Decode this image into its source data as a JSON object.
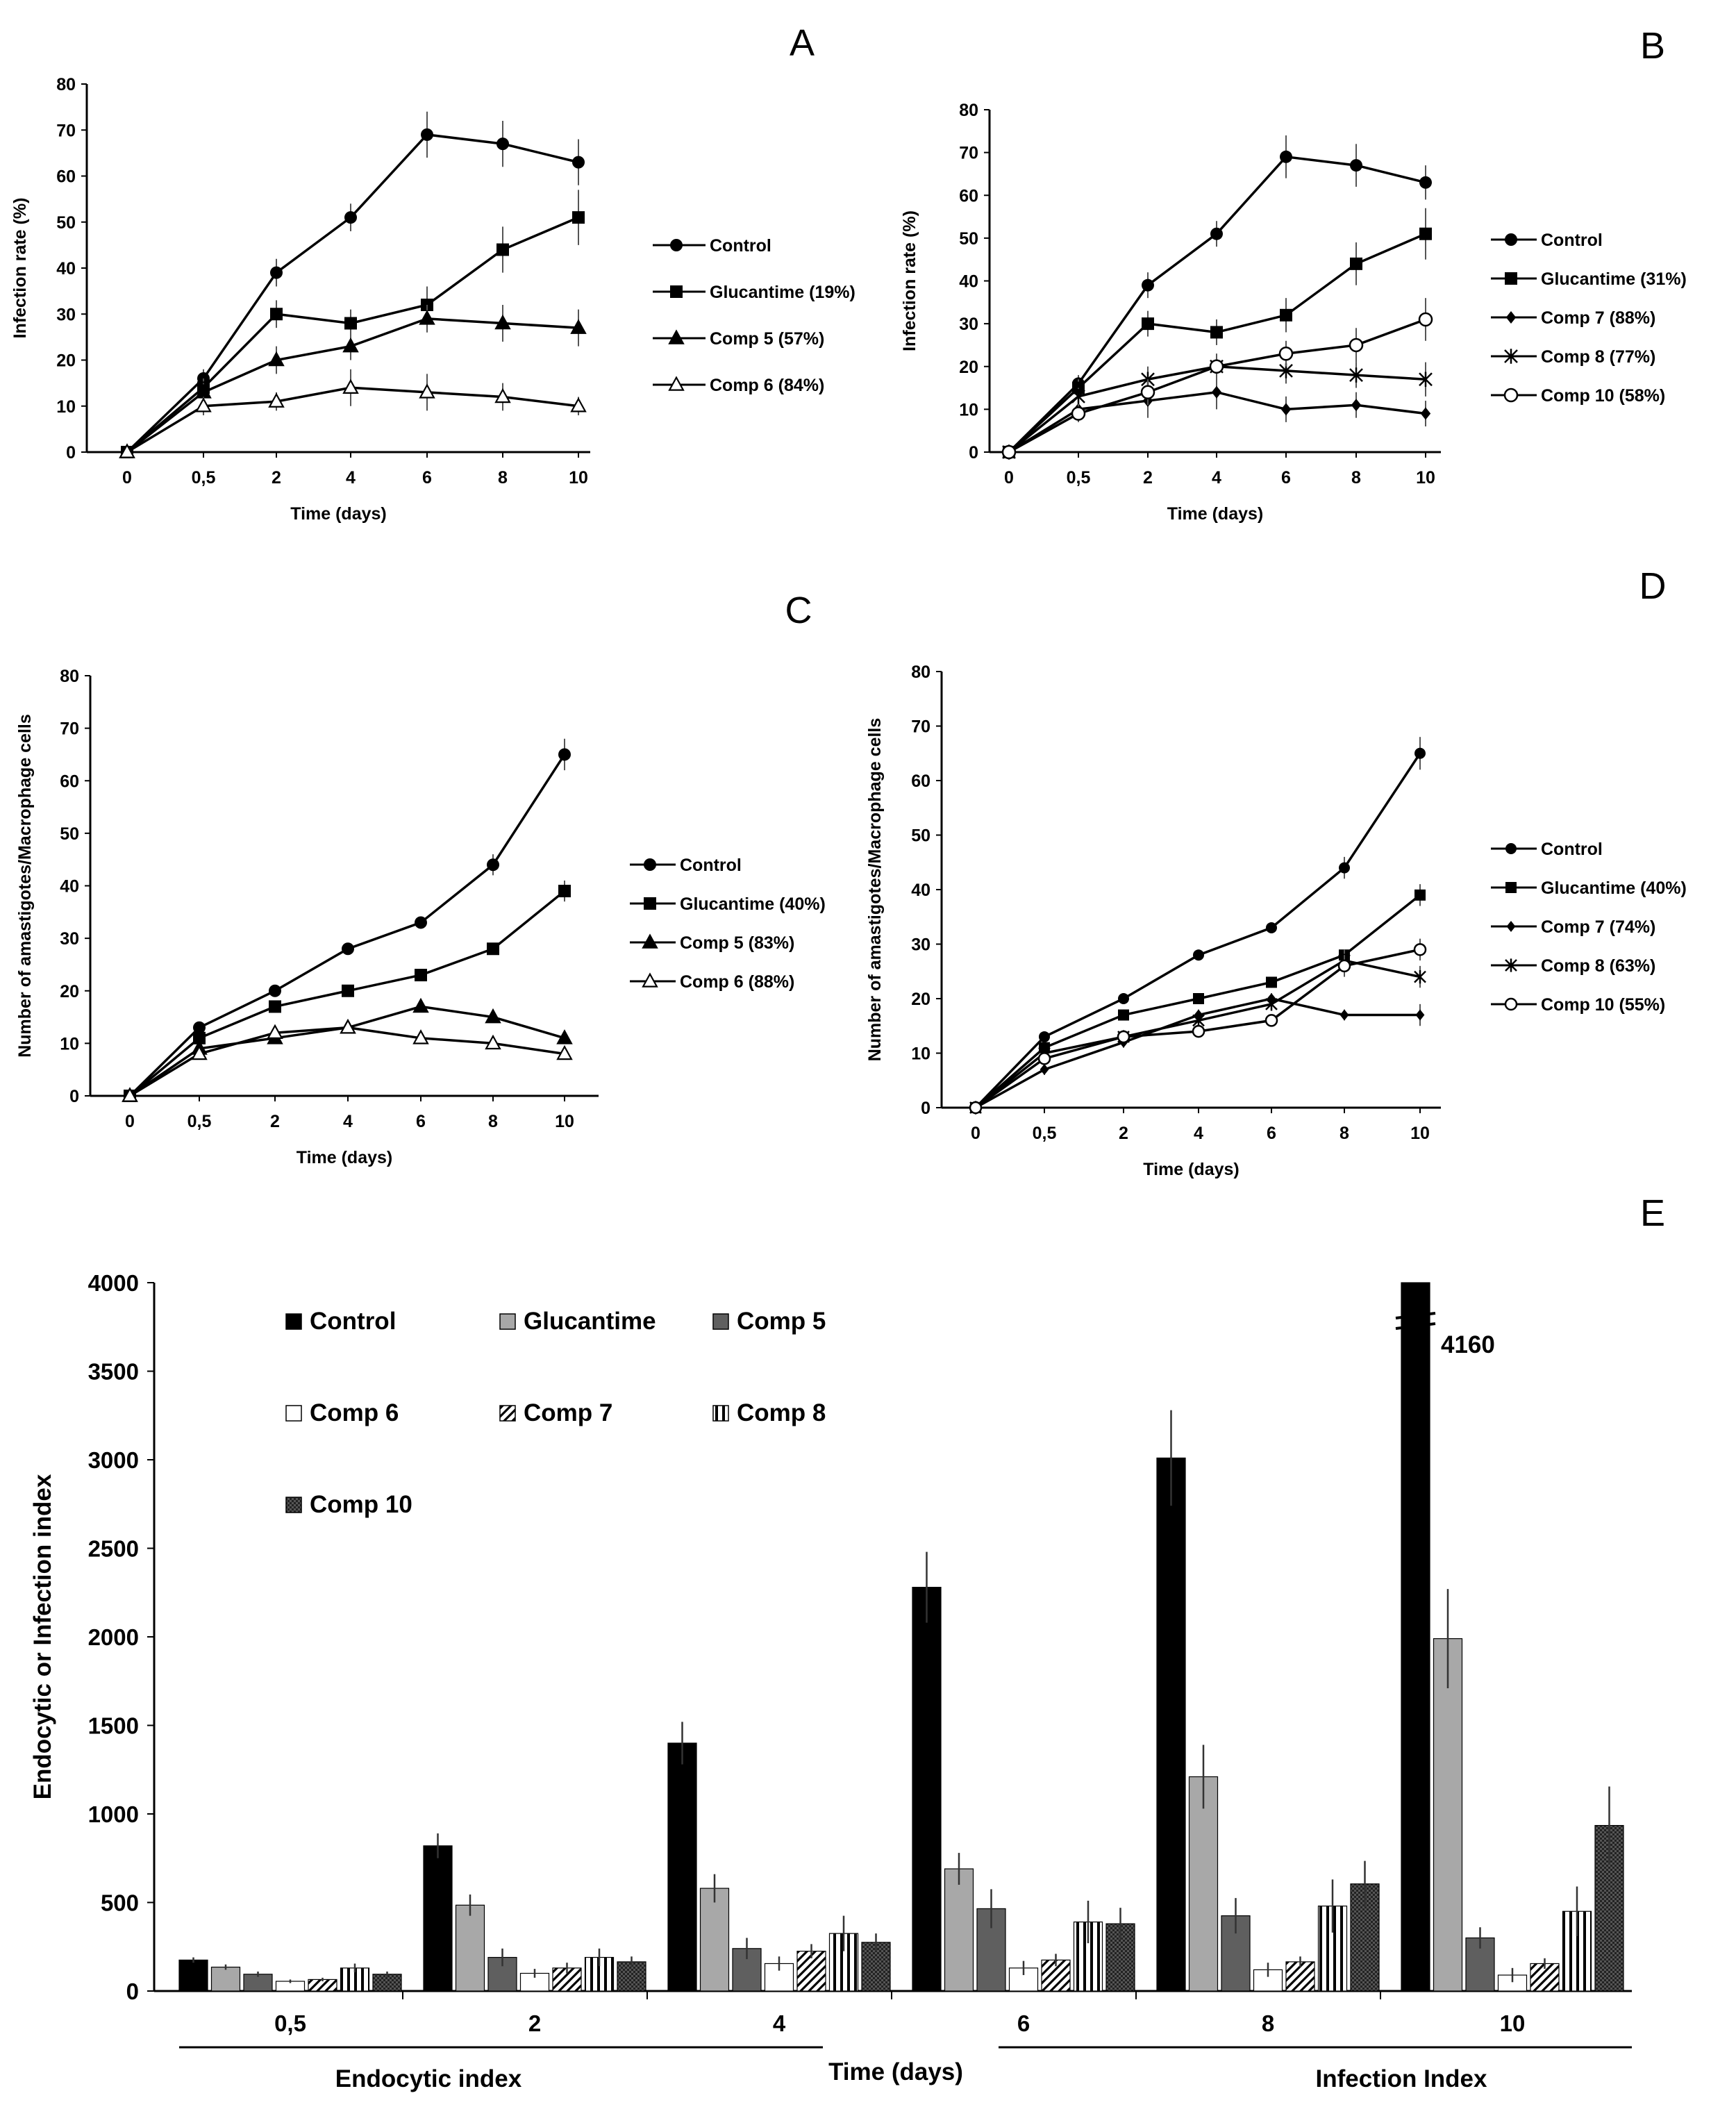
{
  "chart_data": [
    {
      "panel": "A",
      "type": "line",
      "xlabel": "Time (days)",
      "ylabel": "Infection rate (%)",
      "categories": [
        "0",
        "0,5",
        "2",
        "4",
        "6",
        "8",
        "10"
      ],
      "ylim": [
        0,
        80
      ],
      "yticks": [
        0,
        10,
        20,
        30,
        40,
        50,
        60,
        70,
        80
      ],
      "legend_position": "right",
      "grid": false,
      "series": [
        {
          "name": "Control",
          "marker": "circle-filled",
          "values": [
            0,
            16,
            39,
            51,
            69,
            67,
            63
          ],
          "errors": [
            0,
            2,
            3,
            3,
            5,
            5,
            5
          ]
        },
        {
          "name": "Glucantime (19%)",
          "marker": "square-filled",
          "values": [
            0,
            14,
            30,
            28,
            32,
            44,
            51
          ],
          "errors": [
            0,
            2,
            3,
            3,
            4,
            5,
            6
          ]
        },
        {
          "name": "Comp 5 (57%)",
          "marker": "triangle-filled",
          "values": [
            0,
            13,
            20,
            23,
            29,
            28,
            27
          ],
          "errors": [
            0,
            2,
            3,
            3,
            3,
            4,
            4
          ]
        },
        {
          "name": "Comp 6 (84%)",
          "marker": "triangle-open",
          "values": [
            0,
            10,
            11,
            14,
            13,
            12,
            10
          ],
          "errors": [
            0,
            2,
            2,
            4,
            4,
            3,
            2
          ]
        }
      ]
    },
    {
      "panel": "B",
      "type": "line",
      "xlabel": "Time (days)",
      "ylabel": "Infection rate (%)",
      "categories": [
        "0",
        "0,5",
        "2",
        "4",
        "6",
        "8",
        "10"
      ],
      "ylim": [
        0,
        80
      ],
      "yticks": [
        0,
        10,
        20,
        30,
        40,
        50,
        60,
        70,
        80
      ],
      "legend_position": "right",
      "grid": false,
      "series": [
        {
          "name": "Control",
          "marker": "circle-filled",
          "values": [
            0,
            16,
            39,
            51,
            69,
            67,
            63
          ],
          "errors": [
            0,
            2,
            3,
            3,
            5,
            5,
            4
          ]
        },
        {
          "name": "Glucantime (31%)",
          "marker": "square-filled",
          "values": [
            0,
            15,
            30,
            28,
            32,
            44,
            51
          ],
          "errors": [
            0,
            2,
            3,
            3,
            4,
            5,
            6
          ]
        },
        {
          "name": "Comp 7 (88%)",
          "marker": "diamond-filled",
          "values": [
            0,
            10,
            12,
            14,
            10,
            11,
            9
          ],
          "errors": [
            0,
            2,
            4,
            4,
            3,
            3,
            3
          ]
        },
        {
          "name": "Comp 8 (77%)",
          "marker": "x-star",
          "values": [
            0,
            13,
            17,
            20,
            19,
            18,
            17
          ],
          "errors": [
            0,
            2,
            3,
            3,
            3,
            3,
            4
          ]
        },
        {
          "name": "Comp 10 (58%)",
          "marker": "circle-open",
          "values": [
            0,
            9,
            14,
            20,
            23,
            25,
            31
          ],
          "errors": [
            0,
            2,
            3,
            3,
            3,
            4,
            5
          ]
        }
      ]
    },
    {
      "panel": "C",
      "type": "line",
      "xlabel": "Time (days)",
      "ylabel": "Number of amastigotes/Macrophage cells",
      "categories": [
        "0",
        "0,5",
        "2",
        "4",
        "6",
        "8",
        "10"
      ],
      "ylim": [
        0,
        80
      ],
      "yticks": [
        0,
        10,
        20,
        30,
        40,
        50,
        60,
        70,
        80
      ],
      "legend_position": "right",
      "grid": false,
      "series": [
        {
          "name": "Control",
          "marker": "circle-filled",
          "values": [
            0,
            13,
            20,
            28,
            33,
            44,
            65
          ],
          "errors": [
            0,
            1,
            1,
            1,
            1,
            2,
            3
          ]
        },
        {
          "name": "Glucantime (40%)",
          "marker": "square-filled",
          "values": [
            0,
            11,
            17,
            20,
            23,
            28,
            39
          ],
          "errors": [
            0,
            1,
            1,
            1,
            1,
            1,
            2
          ]
        },
        {
          "name": "Comp 5 (83%)",
          "marker": "triangle-filled",
          "values": [
            0,
            9,
            11,
            13,
            17,
            15,
            11
          ],
          "errors": [
            0,
            1,
            1,
            1,
            1,
            1,
            1
          ]
        },
        {
          "name": "Comp 6 (88%)",
          "marker": "triangle-open",
          "values": [
            0,
            8,
            12,
            13,
            11,
            10,
            8
          ],
          "errors": [
            0,
            1,
            1,
            1,
            1,
            1,
            1
          ]
        }
      ]
    },
    {
      "panel": "D",
      "type": "line",
      "xlabel": "Time (days)",
      "ylabel": "Number of amastigotes/Macrophage cells",
      "categories": [
        "0",
        "0,5",
        "2",
        "4",
        "6",
        "8",
        "10"
      ],
      "ylim": [
        0,
        80
      ],
      "yticks": [
        0,
        10,
        20,
        30,
        40,
        50,
        60,
        70,
        80
      ],
      "legend_position": "right",
      "grid": false,
      "series": [
        {
          "name": "Control",
          "marker": "circle-filled",
          "values": [
            0,
            13,
            20,
            28,
            33,
            44,
            65
          ],
          "errors": [
            0,
            1,
            1,
            1,
            1,
            2,
            3
          ]
        },
        {
          "name": "Glucantime (40%)",
          "marker": "square-filled",
          "values": [
            0,
            11,
            17,
            20,
            23,
            28,
            39
          ],
          "errors": [
            0,
            1,
            1,
            1,
            1,
            1,
            2
          ]
        },
        {
          "name": "Comp 7 (74%)",
          "marker": "diamond-filled",
          "values": [
            0,
            7,
            12,
            17,
            20,
            17,
            17
          ],
          "errors": [
            0,
            1,
            1,
            1,
            1,
            1,
            2
          ]
        },
        {
          "name": "Comp 8 (63%)",
          "marker": "x-star",
          "values": [
            0,
            10,
            13,
            16,
            19,
            27,
            24
          ],
          "errors": [
            0,
            1,
            1,
            1,
            1,
            2,
            2
          ]
        },
        {
          "name": "Comp 10 (55%)",
          "marker": "circle-open",
          "values": [
            0,
            9,
            13,
            14,
            16,
            26,
            29
          ],
          "errors": [
            0,
            1,
            1,
            1,
            1,
            2,
            2
          ]
        }
      ]
    },
    {
      "panel": "E",
      "type": "bar",
      "xlabel": "Time (days)",
      "ylabel": "Endocytic or Infection index",
      "categories": [
        "0,5",
        "2",
        "4",
        "6",
        "8",
        "10"
      ],
      "ylim": [
        0,
        4000
      ],
      "yticks": [
        0,
        500,
        1000,
        1500,
        2000,
        2500,
        3000,
        3500,
        4000
      ],
      "group_labels": [
        "Endocytic index",
        "Infection Index"
      ],
      "axis_break_label": "4160",
      "legend_position": "top-left",
      "grid": false,
      "series": [
        {
          "name": "Control",
          "pattern": "black",
          "values": [
            175,
            820,
            1400,
            2280,
            3010,
            4160
          ],
          "errors": [
            15,
            70,
            120,
            200,
            270,
            0
          ]
        },
        {
          "name": "Glucantime",
          "pattern": "lightgray",
          "values": [
            135,
            485,
            580,
            690,
            1210,
            1990
          ],
          "errors": [
            15,
            60,
            80,
            90,
            180,
            280
          ]
        },
        {
          "name": "Comp 5",
          "pattern": "darkgray",
          "values": [
            95,
            190,
            240,
            465,
            425,
            300
          ],
          "errors": [
            15,
            50,
            60,
            110,
            100,
            60
          ]
        },
        {
          "name": "Comp 6",
          "pattern": "white",
          "values": [
            55,
            100,
            155,
            130,
            120,
            90
          ],
          "errors": [
            10,
            25,
            40,
            40,
            40,
            40
          ]
        },
        {
          "name": "Comp 7",
          "pattern": "diagonal",
          "values": [
            65,
            130,
            225,
            175,
            165,
            155
          ],
          "errors": [
            10,
            30,
            40,
            35,
            30,
            30
          ]
        },
        {
          "name": "Comp 8",
          "pattern": "vertical",
          "values": [
            130,
            190,
            325,
            390,
            480,
            450
          ],
          "errors": [
            25,
            50,
            100,
            120,
            150,
            140
          ]
        },
        {
          "name": "Comp 10",
          "pattern": "checker",
          "values": [
            95,
            165,
            275,
            380,
            605,
            935
          ],
          "errors": [
            15,
            30,
            50,
            90,
            130,
            220
          ]
        }
      ]
    }
  ]
}
